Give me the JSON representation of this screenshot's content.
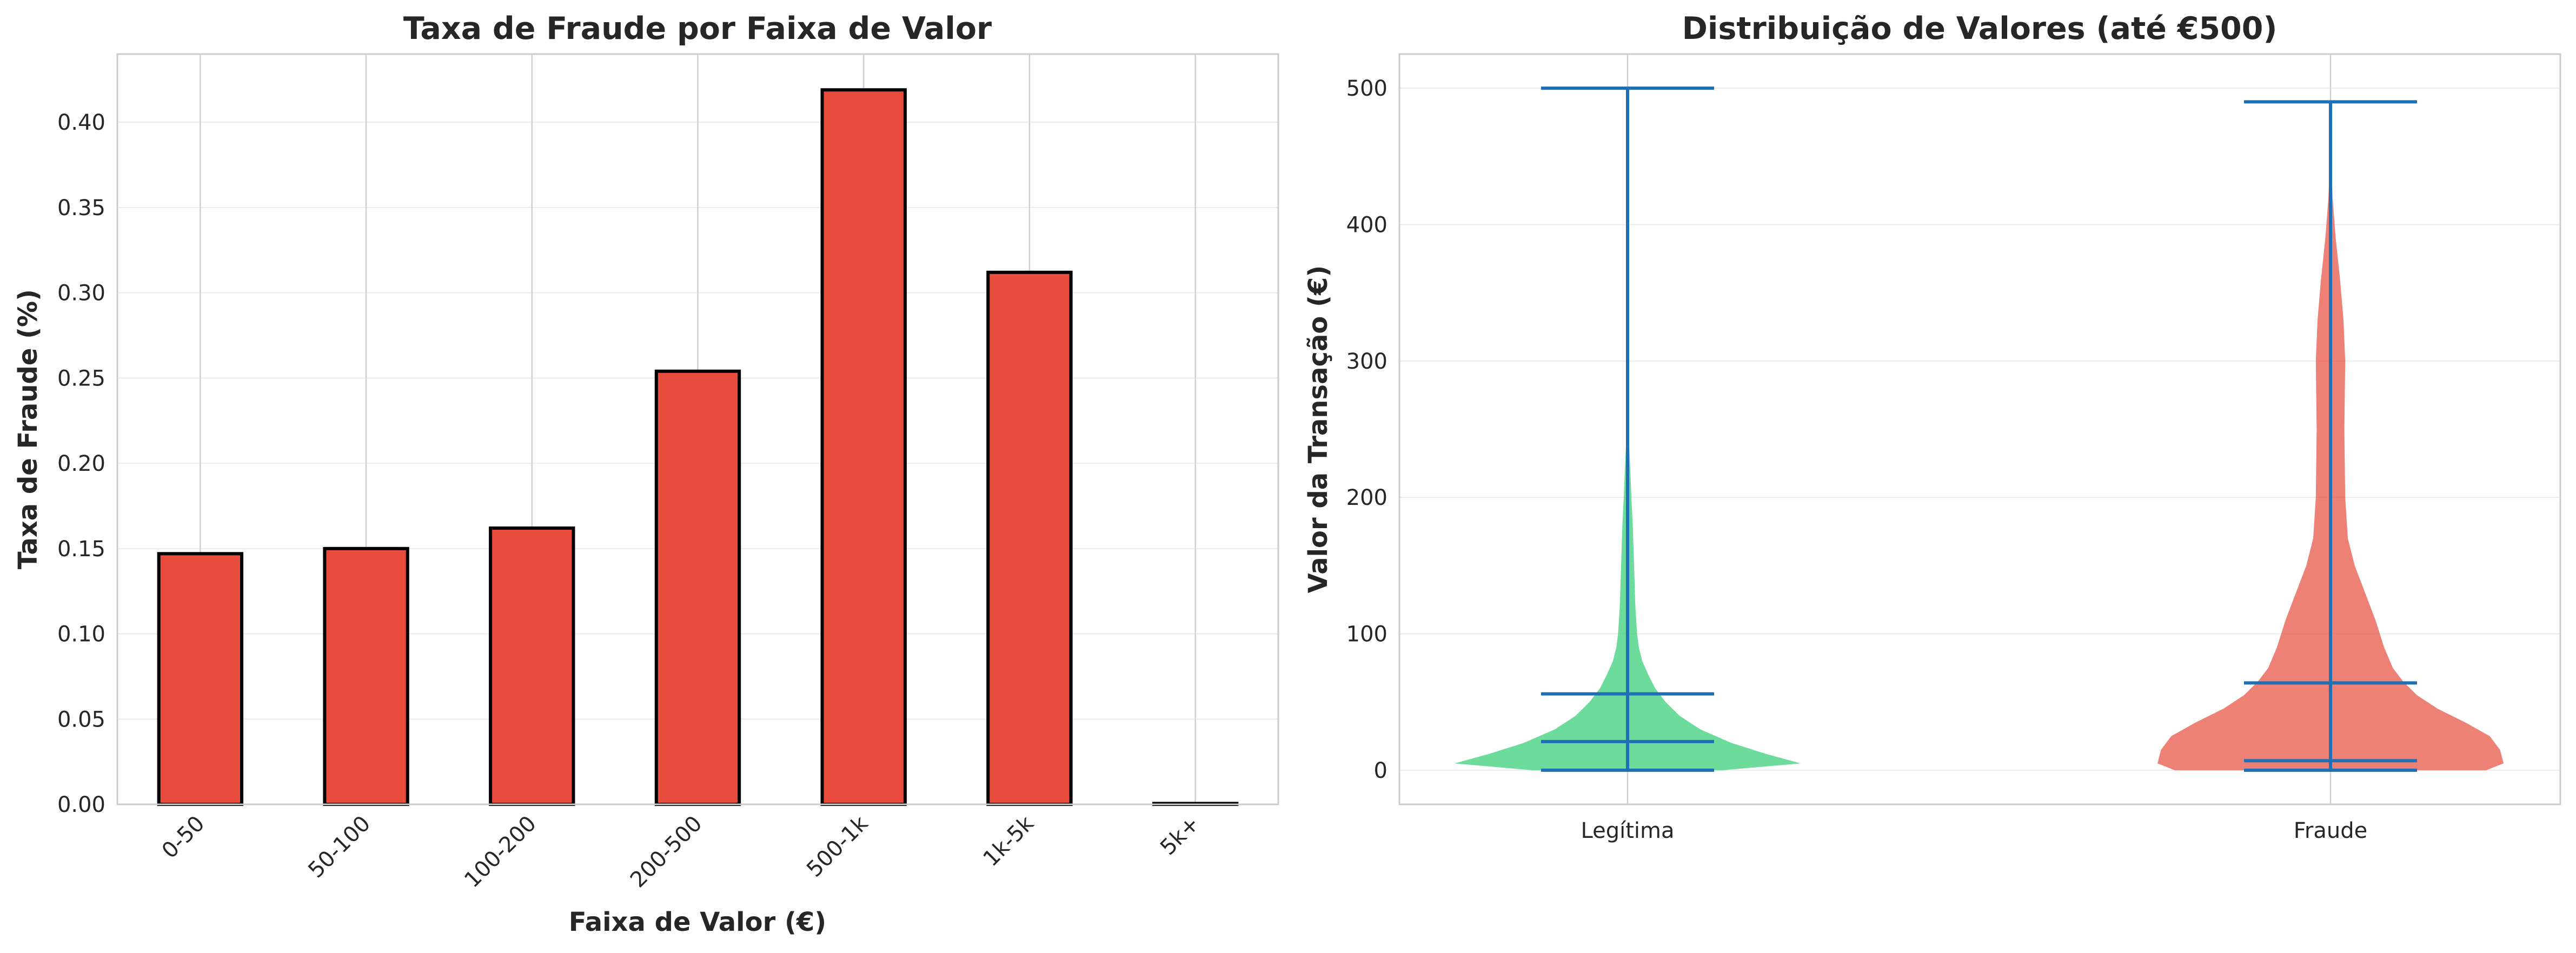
{
  "chart_data": [
    {
      "type": "bar",
      "title": "Taxa de Fraude por Faixa de Valor",
      "xlabel": "Faixa de Valor (€)",
      "ylabel": "Taxa de Fraude (%)",
      "categories": [
        "0-50",
        "50-100",
        "100-200",
        "200-500",
        "500-1k",
        "1k-5k",
        "5k+"
      ],
      "values": [
        0.147,
        0.15,
        0.162,
        0.254,
        0.419,
        0.312,
        0.0005
      ],
      "ylim": [
        0,
        0.44
      ],
      "yticks": [
        0.0,
        0.05,
        0.1,
        0.15,
        0.2,
        0.25,
        0.3,
        0.35,
        0.4
      ],
      "ytick_labels": [
        "0.00",
        "0.05",
        "0.10",
        "0.15",
        "0.20",
        "0.25",
        "0.30",
        "0.35",
        "0.40"
      ],
      "grid": true,
      "bar_color": "#e74c3c",
      "edge_color": "#000000"
    },
    {
      "type": "violin",
      "title": "Distribuição de Valores (até €500)",
      "xlabel": "",
      "ylabel": "Valor da Transação (€)",
      "categories": [
        "Legítima",
        "Fraude"
      ],
      "ylim": [
        -25,
        525
      ],
      "yticks": [
        0,
        100,
        200,
        300,
        400,
        500
      ],
      "grid": true,
      "line_color": "#1f6fb4",
      "series": [
        {
          "category": "Legítima",
          "color": "#2ecc71",
          "min": 0,
          "max": 500,
          "mean": 56,
          "median": 21,
          "density": [
            [
              0,
              0.55
            ],
            [
              5,
              1.0
            ],
            [
              12,
              0.8
            ],
            [
              20,
              0.6
            ],
            [
              30,
              0.42
            ],
            [
              40,
              0.3
            ],
            [
              50,
              0.22
            ],
            [
              60,
              0.16
            ],
            [
              70,
              0.12
            ],
            [
              80,
              0.085
            ],
            [
              90,
              0.065
            ],
            [
              100,
              0.055
            ],
            [
              120,
              0.045
            ],
            [
              140,
              0.04
            ],
            [
              160,
              0.035
            ],
            [
              180,
              0.03
            ],
            [
              200,
              0.022
            ],
            [
              220,
              0.016
            ],
            [
              240,
              0.008
            ],
            [
              260,
              0.004
            ],
            [
              300,
              0.002
            ],
            [
              400,
              0.001
            ],
            [
              500,
              0.0
            ]
          ]
        },
        {
          "category": "Fraude",
          "color": "#e74c3c",
          "min": 0,
          "max": 490,
          "mean": 64,
          "median": 7,
          "density": [
            [
              0,
              0.9
            ],
            [
              5,
              1.0
            ],
            [
              15,
              0.98
            ],
            [
              25,
              0.92
            ],
            [
              35,
              0.78
            ],
            [
              45,
              0.62
            ],
            [
              55,
              0.5
            ],
            [
              65,
              0.42
            ],
            [
              75,
              0.36
            ],
            [
              90,
              0.31
            ],
            [
              110,
              0.26
            ],
            [
              130,
              0.2
            ],
            [
              150,
              0.14
            ],
            [
              170,
              0.1
            ],
            [
              200,
              0.085
            ],
            [
              250,
              0.08
            ],
            [
              300,
              0.085
            ],
            [
              330,
              0.075
            ],
            [
              360,
              0.055
            ],
            [
              390,
              0.03
            ],
            [
              420,
              0.012
            ],
            [
              450,
              0.004
            ],
            [
              490,
              0.0
            ]
          ]
        }
      ]
    }
  ]
}
